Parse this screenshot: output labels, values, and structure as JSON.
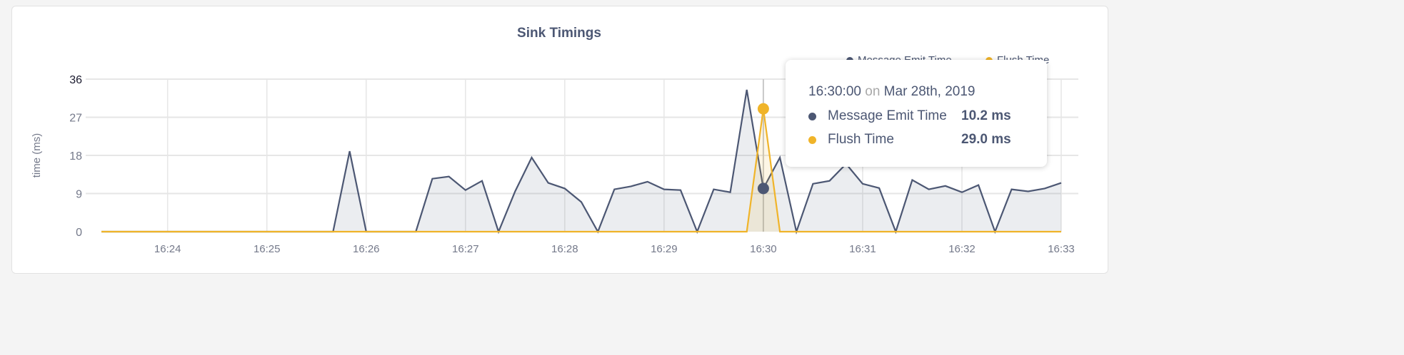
{
  "chart_data": {
    "type": "area",
    "title": "Sink Timings",
    "ylabel": "time (ms)",
    "xlabel": "",
    "ylim": [
      0,
      36
    ],
    "yticks": [
      "0",
      "9",
      "18",
      "27",
      "36"
    ],
    "xticks": [
      "16:24",
      "16:25",
      "16:26",
      "16:27",
      "16:28",
      "16:29",
      "16:30",
      "16:31",
      "16:32",
      "16:33"
    ],
    "x_start": "16:23:20",
    "x_end": "16:33:00",
    "x_step_seconds": 10,
    "grid": true,
    "legend_position": "top-right",
    "series": [
      {
        "name": "Message Emit Time",
        "color": "#4c5773",
        "values": [
          0,
          0,
          0,
          0,
          0,
          0,
          0,
          0,
          0,
          0,
          0,
          0,
          0,
          0,
          0,
          19,
          0,
          0,
          0,
          0,
          12.5,
          13,
          9.8,
          12,
          0,
          9.5,
          17.5,
          11.5,
          10.2,
          7,
          0,
          10,
          10.7,
          11.8,
          10,
          9.8,
          0,
          10,
          9.3,
          33.5,
          10.2,
          17.5,
          0,
          11.3,
          12,
          16,
          11.3,
          10.3,
          0,
          12.2,
          10,
          10.8,
          9.3,
          11,
          0,
          10,
          9.5,
          10.2,
          11.5
        ]
      },
      {
        "name": "Flush Time",
        "color": "#f0b429",
        "values": [
          0,
          0,
          0,
          0,
          0,
          0,
          0,
          0,
          0,
          0,
          0,
          0,
          0,
          0,
          0,
          0,
          0,
          0,
          0,
          0,
          0,
          0,
          0,
          0,
          0,
          0,
          0,
          0,
          0,
          0,
          0,
          0,
          0,
          0,
          0,
          0,
          0,
          0,
          0,
          0,
          29,
          0,
          0,
          0,
          0,
          0,
          0,
          0,
          0,
          0,
          0,
          0,
          0,
          0,
          0,
          0,
          0,
          0,
          0
        ]
      }
    ]
  },
  "tooltip": {
    "time": "16:30:00",
    "on": "on",
    "date": "Mar 28th, 2019",
    "rows": [
      {
        "label": "Message Emit Time",
        "value": "10.2 ms"
      },
      {
        "label": "Flush Time",
        "value": "29.0 ms"
      }
    ]
  }
}
